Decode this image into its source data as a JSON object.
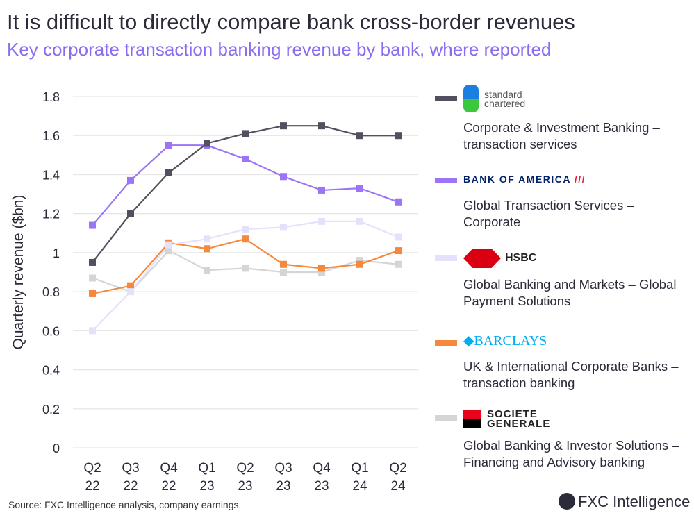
{
  "title": "It is difficult to directly compare bank cross-border revenues",
  "subtitle": "Key corporate transaction banking revenue by bank, where reported",
  "source": "Source: FXC Intelligence analysis, company earnings.",
  "brand": "FXC Intelligence",
  "legend": [
    {
      "logo": "standard chartered",
      "logo_line1": "standard",
      "logo_line2": "chartered",
      "desc": "Corporate & Investment Banking – transaction services",
      "color": "#50505f"
    },
    {
      "logo": "BANK OF AMERICA",
      "desc": "Global Transaction Services – Corporate",
      "color": "#9b74f7"
    },
    {
      "logo": "HSBC",
      "desc": "Global Banking and Markets – Global Payment Solutions",
      "color": "#e6e1fb"
    },
    {
      "logo": "BARCLAYS",
      "desc": "UK & International Corporate Banks – transaction banking",
      "color": "#f5883a"
    },
    {
      "logo": "SOCIETE GENERALE",
      "logo_line1": "SOCIETE",
      "logo_line2": "GENERALE",
      "desc": "Global Banking & Investor Solutions – Financing and Advisory banking",
      "color": "#d5d5d5"
    }
  ],
  "chart_data": {
    "type": "line",
    "title": "",
    "xlabel": "",
    "ylabel": "Quarterly revenue ($bn)",
    "ylim": [
      0,
      1.8
    ],
    "yticks": [
      "0",
      "0.2",
      "0.4",
      "0.6",
      "0.8",
      "1",
      "1.2",
      "1.4",
      "1.6",
      "1.8"
    ],
    "grid": true,
    "legend_position": "right",
    "categories": [
      [
        "Q2",
        "22"
      ],
      [
        "Q3",
        "22"
      ],
      [
        "Q4",
        "22"
      ],
      [
        "Q1",
        "23"
      ],
      [
        "Q2",
        "23"
      ],
      [
        "Q3",
        "23"
      ],
      [
        "Q4",
        "23"
      ],
      [
        "Q1",
        "24"
      ],
      [
        "Q2",
        "24"
      ]
    ],
    "series": [
      {
        "name": "standard chartered",
        "color": "#50505f",
        "values": [
          0.95,
          1.2,
          1.41,
          1.56,
          1.61,
          1.65,
          1.65,
          1.6,
          1.6
        ]
      },
      {
        "name": "BANK OF AMERICA",
        "color": "#9b74f7",
        "values": [
          1.14,
          1.37,
          1.55,
          1.55,
          1.48,
          1.39,
          1.32,
          1.33,
          1.26
        ]
      },
      {
        "name": "HSBC",
        "color": "#e6e1fb",
        "values": [
          0.6,
          0.8,
          1.04,
          1.07,
          1.12,
          1.13,
          1.16,
          1.16,
          1.08
        ]
      },
      {
        "name": "BARCLAYS",
        "color": "#f5883a",
        "values": [
          0.79,
          0.83,
          1.05,
          1.02,
          1.07,
          0.94,
          0.92,
          0.94,
          1.01
        ]
      },
      {
        "name": "SOCIETE GENERALE",
        "color": "#d5d5d5",
        "values": [
          0.87,
          0.8,
          1.01,
          0.91,
          0.92,
          0.9,
          0.9,
          0.96,
          0.94
        ]
      }
    ]
  }
}
